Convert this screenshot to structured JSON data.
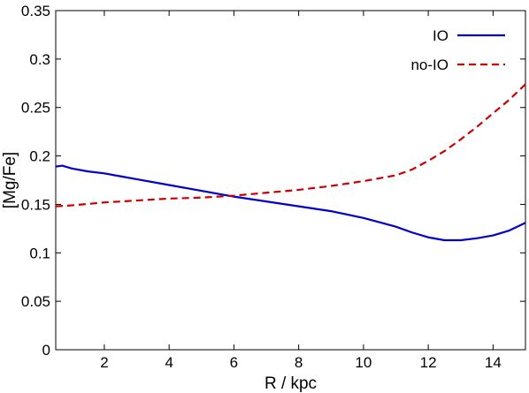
{
  "chart_data": {
    "type": "line",
    "title": "",
    "xlabel": "R / kpc",
    "ylabel": "[Mg/Fe]",
    "xlim": [
      0.5,
      15
    ],
    "ylim": [
      0,
      0.35
    ],
    "x_ticks": [
      2,
      4,
      6,
      8,
      10,
      12,
      14
    ],
    "x_tick_labels": [
      "2",
      "4",
      "6",
      "8",
      "10",
      "12",
      "14"
    ],
    "y_ticks": [
      0,
      0.05,
      0.1,
      0.15,
      0.2,
      0.25,
      0.3,
      0.35
    ],
    "y_tick_labels": [
      "0",
      "0.05",
      "0.1",
      "0.15",
      "0.2",
      "0.25",
      "0.3",
      "0.35"
    ],
    "grid": false,
    "legend": "top-right",
    "series": [
      {
        "name": "IO",
        "color": "#0000cc",
        "dash": "solid",
        "x": [
          0.5,
          0.7,
          1.0,
          1.5,
          2.0,
          2.5,
          3.0,
          4.0,
          5.0,
          6.0,
          7.0,
          8.0,
          9.0,
          10.0,
          11.0,
          11.5,
          12.0,
          12.5,
          13.0,
          13.5,
          14.0,
          14.5,
          15.0
        ],
        "y": [
          0.189,
          0.19,
          0.187,
          0.184,
          0.182,
          0.179,
          0.176,
          0.17,
          0.164,
          0.158,
          0.153,
          0.148,
          0.143,
          0.136,
          0.127,
          0.121,
          0.116,
          0.113,
          0.113,
          0.115,
          0.118,
          0.123,
          0.131
        ]
      },
      {
        "name": "no-IO",
        "color": "#cc0000",
        "dash": "dashed",
        "x": [
          0.5,
          1.0,
          2.0,
          3.0,
          4.0,
          5.0,
          6.0,
          7.0,
          8.0,
          9.0,
          10.0,
          11.0,
          11.5,
          12.0,
          12.5,
          13.0,
          13.5,
          14.0,
          14.5,
          15.0
        ],
        "y": [
          0.148,
          0.149,
          0.152,
          0.154,
          0.156,
          0.157,
          0.159,
          0.162,
          0.165,
          0.169,
          0.174,
          0.18,
          0.186,
          0.195,
          0.205,
          0.217,
          0.23,
          0.244,
          0.258,
          0.274
        ]
      }
    ]
  }
}
